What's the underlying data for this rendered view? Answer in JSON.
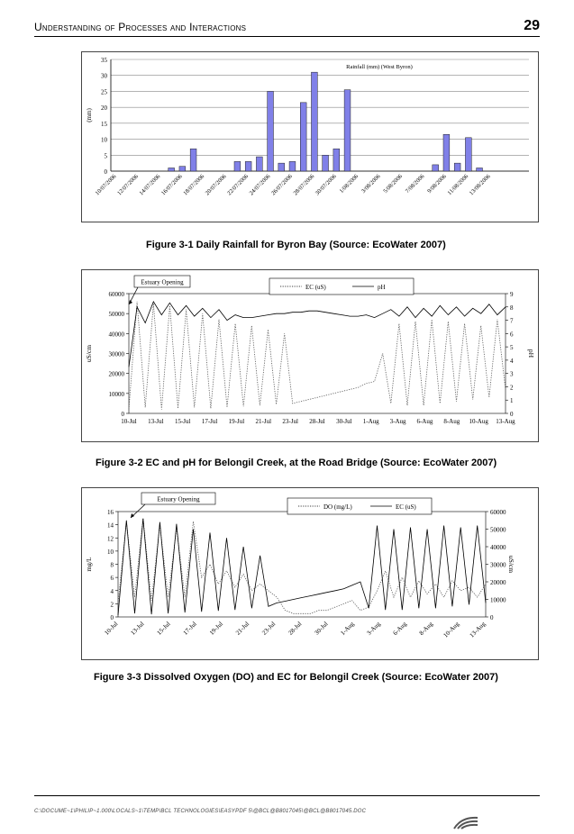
{
  "header": {
    "title": "Understanding of Processes and Interactions",
    "page_number": "29"
  },
  "figures": [
    {
      "caption": "Figure 3-1    Daily Rainfall for Byron Bay (Source: EcoWater 2007)",
      "chart_data": {
        "type": "bar",
        "title": "Rainfall (mm) (West Byron)",
        "ylabel": "(mm)",
        "ylim": [
          0,
          35
        ],
        "yticks": [
          0,
          5,
          10,
          15,
          20,
          25,
          30,
          35
        ],
        "tick_labels": [
          "10/07/2006",
          "12/07/2006",
          "14/07/2006",
          "16/07/2006",
          "18/07/2006",
          "20/07/2006",
          "22/07/2006",
          "24/07/2006",
          "26/07/2006",
          "28/07/2006",
          "30/07/2006",
          "1/08/2006",
          "3/08/2006",
          "5/08/2006",
          "7/08/2006",
          "9/08/2006",
          "11/08/2006",
          "13/08/2006"
        ],
        "values": [
          0,
          0,
          0,
          0,
          0,
          1,
          1.5,
          7,
          0,
          0,
          0,
          3,
          3,
          4.5,
          25,
          2.5,
          3,
          21.5,
          31,
          5,
          7,
          25.5,
          0,
          0,
          0,
          0,
          0,
          0,
          0,
          2,
          11.5,
          2.5,
          10.5,
          1,
          0,
          0,
          0,
          0
        ],
        "color": "#8080e8"
      }
    },
    {
      "caption": "Figure 3-2    EC and pH for Belongil Creek, at the Road Bridge (Source: EcoWater 2007)",
      "chart_data": {
        "type": "line",
        "annotation": "Estuary Opening",
        "ylabel_left": "uS/cm",
        "ylabel_right": "pH",
        "ylim_left": [
          0,
          60000
        ],
        "yticks_left": [
          0,
          10000,
          20000,
          30000,
          40000,
          50000,
          60000
        ],
        "ylim_right": [
          0,
          9
        ],
        "yticks_right": [
          0,
          1,
          2,
          3,
          4,
          5,
          6,
          7,
          8,
          9
        ],
        "xticks": [
          "10-Jul",
          "13-Jul",
          "15-Jul",
          "17-Jul",
          "19-Jul",
          "21-Jul",
          "23-Jul",
          "28-Jul",
          "30-Jul",
          "1-Aug",
          "3-Aug",
          "6-Aug",
          "8-Aug",
          "10-Aug",
          "13-Aug"
        ],
        "series": [
          {
            "name": "EC (uS)",
            "style": "dotted",
            "axis": "left",
            "y": [
              2000,
              56000,
              3000,
              55000,
              2000,
              54000,
              2500,
              52000,
              3000,
              50000,
              2500,
              47000,
              3000,
              45000,
              3500,
              44000,
              4000,
              42000,
              4500,
              40000,
              5000,
              6000,
              7000,
              8000,
              9000,
              10000,
              11000,
              12000,
              13000,
              15000,
              16000,
              30000,
              5000,
              45000,
              4000,
              46000,
              4000,
              47000,
              5000,
              46000,
              6000,
              45000,
              7000,
              44000,
              8000,
              47000,
              12000
            ]
          },
          {
            "name": "pH",
            "style": "solid",
            "axis": "right",
            "y": [
              3.5,
              8,
              6.8,
              8.4,
              7.4,
              8.3,
              7.4,
              8.1,
              7.3,
              7.9,
              7.2,
              7.8,
              7,
              7.4,
              7.2,
              7.2,
              7.3,
              7.4,
              7.5,
              7.5,
              7.6,
              7.6,
              7.7,
              7.7,
              7.6,
              7.5,
              7.4,
              7.3,
              7.3,
              7.4,
              7.2,
              7.5,
              7.8,
              7.3,
              8,
              7.2,
              7.9,
              7.3,
              8.1,
              7.4,
              8,
              7.3,
              7.9,
              7.5,
              8.2,
              7.4,
              8
            ]
          }
        ]
      }
    },
    {
      "caption": "Figure 3-3    Dissolved Oxygen (DO) and EC for Belongil Creek (Source: EcoWater 2007)",
      "chart_data": {
        "type": "line",
        "annotation": "Estuary Opening",
        "ylabel_left": "mg/L",
        "ylabel_right": "uS/cm",
        "ylim_left": [
          0,
          16
        ],
        "yticks_left": [
          0,
          2,
          4,
          6,
          8,
          10,
          12,
          14,
          16
        ],
        "ylim_right": [
          0,
          60000
        ],
        "yticks_right": [
          0,
          10000,
          20000,
          30000,
          40000,
          50000,
          60000
        ],
        "xticks": [
          "10-Jul",
          "13-Jul",
          "15-Jul",
          "17-Jul",
          "19-Jul",
          "21-Jul",
          "23-Jul",
          "28-Jul",
          "30-Jul",
          "1-Aug",
          "3-Aug",
          "6-Aug",
          "8-Aug",
          "10-Aug",
          "13-Aug"
        ],
        "series": [
          {
            "name": "DO (mg/L)",
            "style": "dotted",
            "axis": "left",
            "y": [
              2,
              14.5,
              3,
              15,
              2.5,
              14,
              3,
              13.5,
              3,
              14.5,
              6,
              8,
              5,
              7,
              4.5,
              6.5,
              4,
              5,
              4,
              3,
              1,
              0.5,
              0.5,
              0.5,
              1,
              1,
              1.5,
              2,
              2.5,
              1,
              1.5,
              4,
              7,
              3,
              6,
              3,
              5.5,
              3.5,
              5,
              3,
              5.5,
              4,
              4.5,
              3,
              5
            ]
          },
          {
            "name": "EC (uS)",
            "style": "solid",
            "axis": "right",
            "y": [
              1000,
              55000,
              2000,
              56000,
              1500,
              54000,
              2000,
              53000,
              2500,
              50000,
              3000,
              48000,
              3500,
              45000,
              4000,
              40000,
              5000,
              35000,
              6000,
              8000,
              9000,
              10000,
              11000,
              12000,
              13000,
              14000,
              15000,
              16000,
              18000,
              20000,
              5000,
              52000,
              4000,
              50000,
              4000,
              51000,
              5000,
              50000,
              5000,
              52000,
              6000,
              51000,
              7000,
              52000,
              8000
            ]
          }
        ]
      }
    }
  ],
  "footer": {
    "path": "C:\\DOCUME~1\\PHILIP~1.000\\LOCALS~1\\TEMP\\BCL TECHNOLOGIES\\EASYPDF 5\\@BCL@B8017045\\@BCL@B8017045.DOC"
  }
}
